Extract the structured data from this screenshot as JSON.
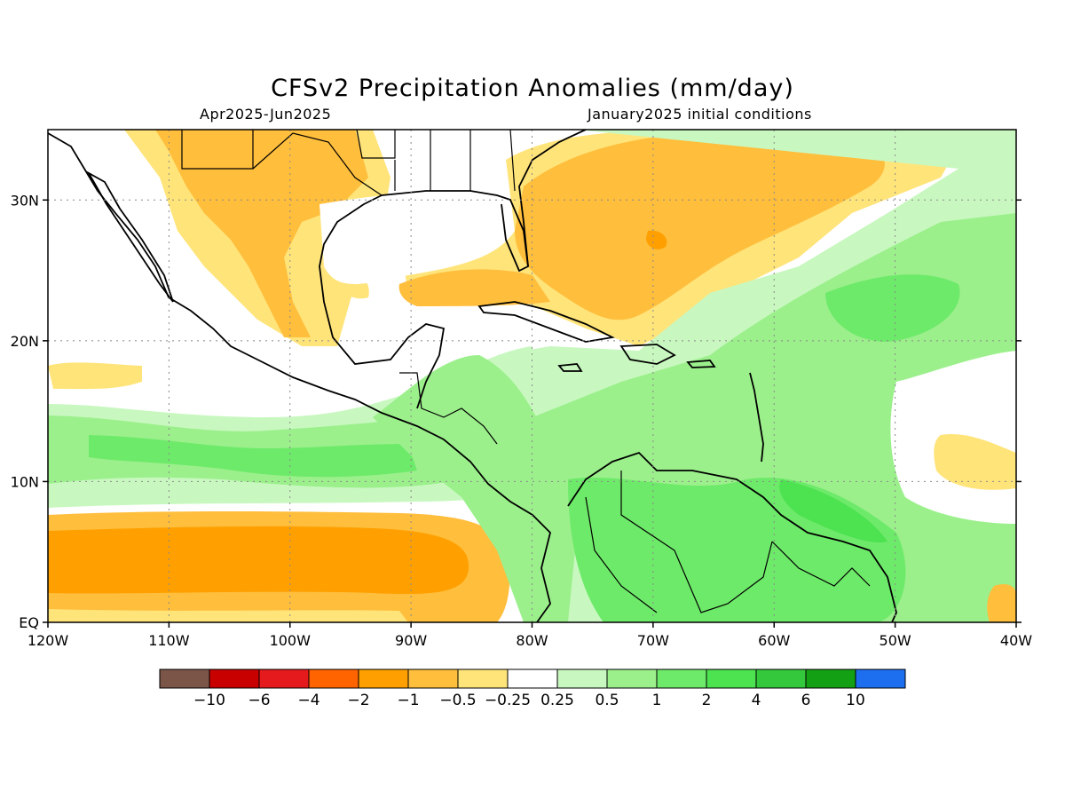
{
  "title": "CFSv2 Precipitation Anomalies (mm/day)",
  "period": "Apr2025-Jun2025",
  "initial_conditions": "January2025 initial conditions",
  "map": {
    "lon_range": [
      -120,
      -40
    ],
    "lat_range": [
      0,
      35
    ],
    "lat_ticks": [
      {
        "value": 0,
        "label": "EQ"
      },
      {
        "value": 10,
        "label": "10N"
      },
      {
        "value": 20,
        "label": "20N"
      },
      {
        "value": 30,
        "label": "30N"
      }
    ],
    "lon_ticks": [
      {
        "value": -120,
        "label": "120W"
      },
      {
        "value": -110,
        "label": "110W"
      },
      {
        "value": -100,
        "label": "100W"
      },
      {
        "value": -90,
        "label": "90W"
      },
      {
        "value": -80,
        "label": "80W"
      },
      {
        "value": -70,
        "label": "70W"
      },
      {
        "value": -60,
        "label": "60W"
      },
      {
        "value": -50,
        "label": "50W"
      },
      {
        "value": -40,
        "label": "40W"
      }
    ],
    "grid": "dotted"
  },
  "colorbar": {
    "colors": [
      "#7a5548",
      "#c80000",
      "#e41a1c",
      "#ff6400",
      "#ffa000",
      "#ffbe3c",
      "#ffe47a",
      "#ffffff",
      "#c8f8c0",
      "#9cf08c",
      "#6eea6a",
      "#4ce250",
      "#34c83c",
      "#14a014",
      "#1e6ef0"
    ],
    "labels": [
      "-10",
      "-6",
      "-4",
      "-2",
      "-1",
      "-0.5",
      "-0.25",
      "0.25",
      "0.5",
      "1",
      "2",
      "4",
      "6",
      "10"
    ]
  }
}
